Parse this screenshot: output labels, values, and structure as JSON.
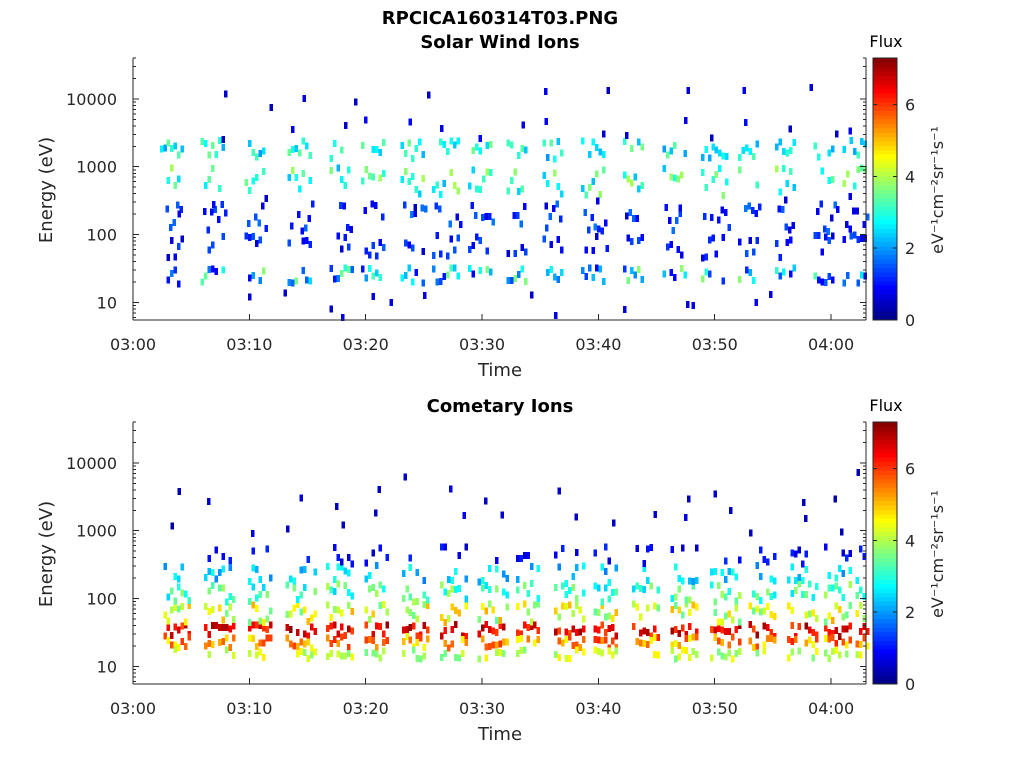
{
  "figure": {
    "filename": "RPCICA160314T03.PNG"
  },
  "chart_data": [
    {
      "type": "heatmap",
      "title": "Solar Wind Ions",
      "xlabel": "Time",
      "ylabel": "Energy (eV)",
      "x_range": [
        "03:00",
        "04:03"
      ],
      "x_ticks": [
        "03:00",
        "03:10",
        "03:20",
        "03:30",
        "03:40",
        "03:50",
        "04:00"
      ],
      "y_scale": "log",
      "y_range": [
        5.5,
        40000
      ],
      "y_ticks": [
        {
          "value": 10,
          "label": "10"
        },
        {
          "value": 100,
          "label": "100"
        },
        {
          "value": 1000,
          "label": "1000"
        },
        {
          "value": 10000,
          "label": "10000"
        }
      ],
      "colorbar": {
        "title": "Flux",
        "label": "eV⁻¹cm⁻²sr⁻¹s⁻¹",
        "range": [
          0,
          7.3
        ],
        "ticks": [
          0,
          2,
          4,
          6
        ],
        "colormap": "jet"
      }
    },
    {
      "type": "heatmap",
      "title": "Cometary Ions",
      "xlabel": "Time",
      "ylabel": "Energy (eV)",
      "x_range": [
        "03:00",
        "04:03"
      ],
      "x_ticks": [
        "03:00",
        "03:10",
        "03:20",
        "03:30",
        "03:40",
        "03:50",
        "04:00"
      ],
      "y_scale": "log",
      "y_range": [
        5.5,
        40000
      ],
      "y_ticks": [
        {
          "value": 10,
          "label": "10"
        },
        {
          "value": 100,
          "label": "100"
        },
        {
          "value": 1000,
          "label": "1000"
        },
        {
          "value": 10000,
          "label": "10000"
        }
      ],
      "colorbar": {
        "title": "Flux",
        "label": "eV⁻¹cm⁻²sr⁻¹s⁻¹",
        "range": [
          0,
          7.3
        ],
        "ticks": [
          0,
          2,
          4,
          6
        ],
        "colormap": "jet"
      }
    }
  ]
}
